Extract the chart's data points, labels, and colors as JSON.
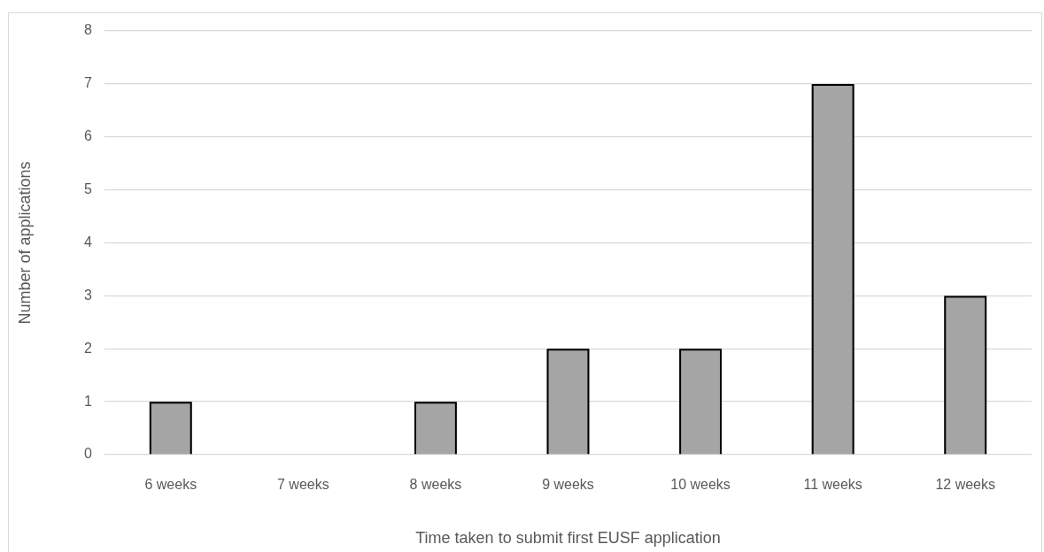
{
  "chart_data": {
    "type": "bar",
    "xlabel": "Time taken to submit first EUSF application",
    "ylabel": "Number of applications",
    "categories": [
      "6 weeks",
      "7 weeks",
      "8 weeks",
      "9 weeks",
      "10 weeks",
      "11 weeks",
      "12 weeks"
    ],
    "values": [
      1,
      0,
      1,
      2,
      2,
      7,
      3
    ],
    "color": "#a5a5a5",
    "ylim": [
      0,
      8
    ],
    "yticks": [
      0,
      1,
      2,
      3,
      4,
      5,
      6,
      7,
      8
    ],
    "grid": "y"
  }
}
